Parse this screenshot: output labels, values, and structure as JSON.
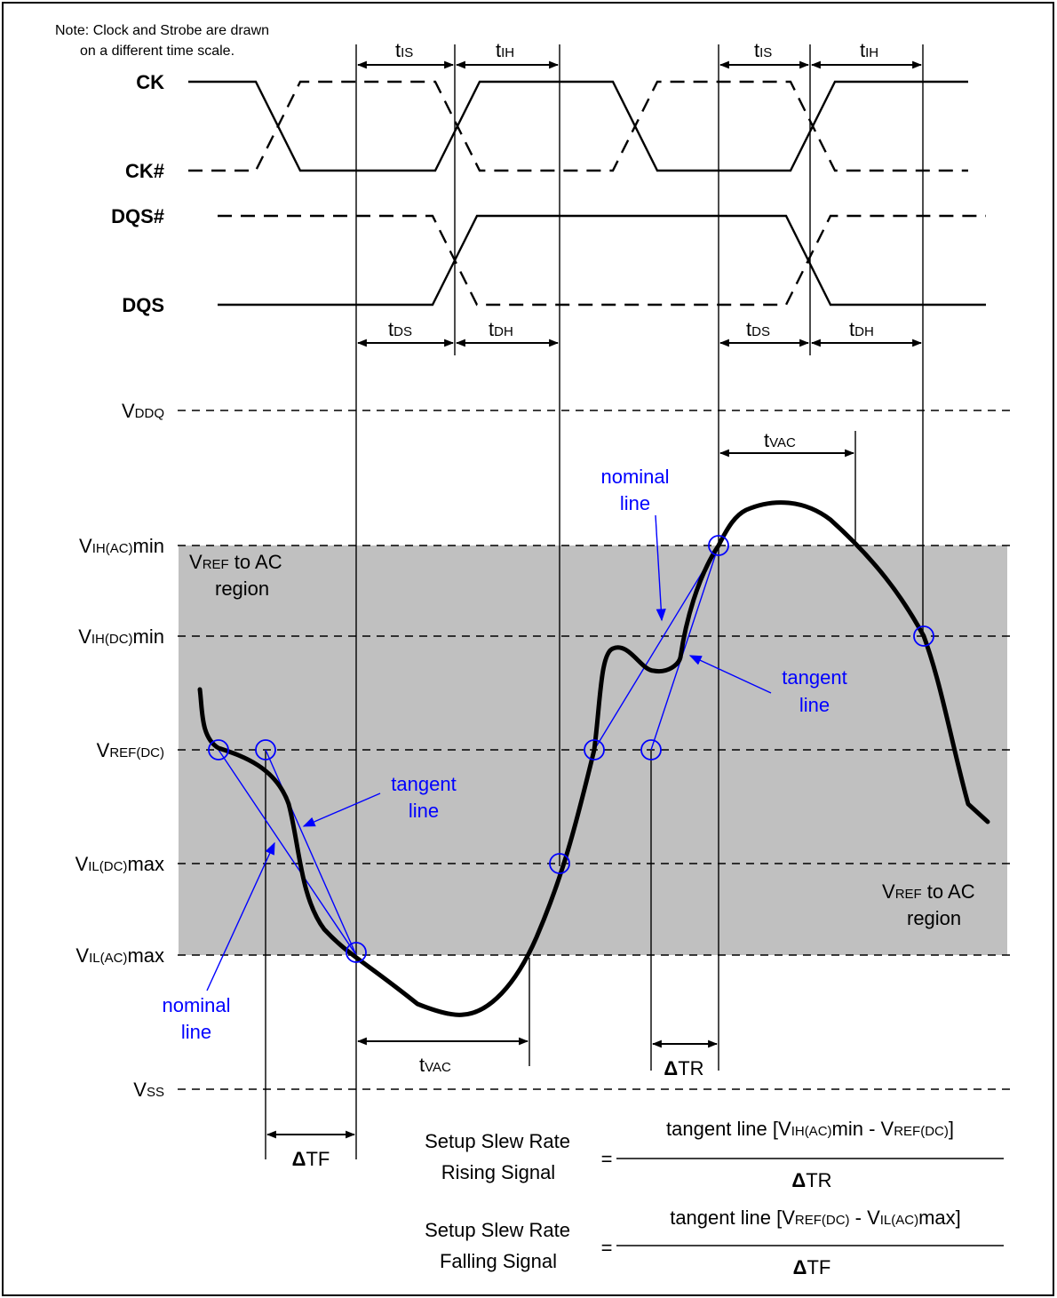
{
  "note": {
    "line1": "Note: Clock and Strobe are drawn",
    "line2": "on a different time scale."
  },
  "signals": {
    "ck": "CK",
    "ck_n": "CK#",
    "dqs_n": "DQS#",
    "dqs": "DQS"
  },
  "timing": {
    "tis": {
      "t": "t",
      "sub": "IS"
    },
    "tih": {
      "t": "t",
      "sub": "IH"
    },
    "tds": {
      "t": "t",
      "sub": "DS"
    },
    "tdh": {
      "t": "t",
      "sub": "DH"
    },
    "tvac": {
      "t": "t",
      "sub": "VAC"
    }
  },
  "levels": {
    "vddq": {
      "v": "V",
      "sub": "DDQ",
      "post": ""
    },
    "vih_ac": {
      "v": "V",
      "sub": "IH(AC)",
      "post": "min"
    },
    "vih_dc": {
      "v": "V",
      "sub": "IH(DC)",
      "post": "min"
    },
    "vref_dc": {
      "v": "V",
      "sub": "REF(DC)",
      "post": ""
    },
    "vil_dc": {
      "v": "V",
      "sub": "IL(DC)",
      "post": "max"
    },
    "vil_ac": {
      "v": "V",
      "sub": "IL(AC)",
      "post": "max"
    },
    "vss": {
      "v": "V",
      "sub": "SS",
      "post": ""
    }
  },
  "region": {
    "v": "V",
    "sub": "REF",
    "rest": " to AC",
    "line2": "region"
  },
  "annotations": {
    "nominal_1": "nominal",
    "nominal_2": "line",
    "tangent_1": "tangent",
    "tangent_2": "line"
  },
  "deltas": {
    "delta": "Δ",
    "tr": "TR",
    "tf": "TF"
  },
  "formulas": {
    "rising": {
      "line1": "Setup  Slew Rate",
      "line2": "Rising Signal",
      "eq": "=",
      "num_pre": "tangent line [V",
      "num_sub1": "IH(AC)",
      "num_mid": "min - V",
      "num_sub2": "REF(DC)",
      "num_post": "]"
    },
    "falling": {
      "line1": "Setup  Slew Rate",
      "line2": "Falling Signal",
      "eq": "=",
      "num_pre": "tangent line [V",
      "num_sub1": "REF(DC)",
      "num_mid": " - V",
      "num_sub2": "IL(AC)",
      "num_post": "max]"
    }
  },
  "colors": {
    "region_fill": "#c0c0c0",
    "annotation_blue": "#0000ff",
    "line": "#000000"
  }
}
